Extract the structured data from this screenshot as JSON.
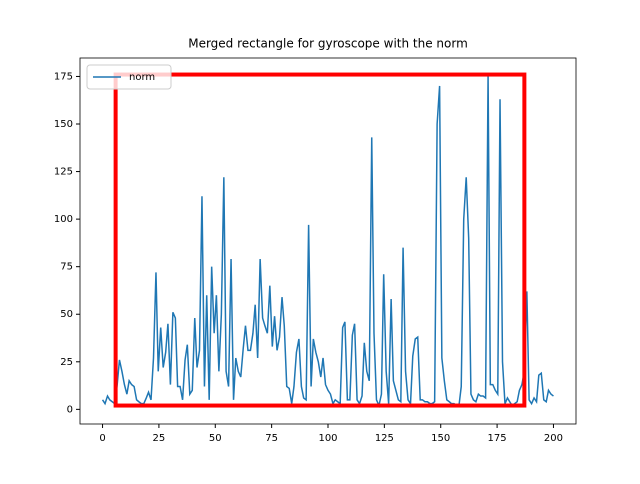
{
  "chart_data": {
    "type": "line",
    "title": "Merged rectangle for gyroscope with the norm",
    "x": [
      0,
      1.1,
      2.2,
      3.2,
      4.3,
      5.4,
      6.5,
      7.5,
      8.6,
      9.7,
      10.8,
      11.8,
      12.9,
      14,
      15.1,
      16.1,
      17.2,
      18.3,
      19.4,
      20.4,
      21.5,
      22.6,
      23.7,
      24.7,
      25.8,
      26.9,
      28,
      29,
      30.1,
      31.2,
      32.3,
      33.3,
      34.4,
      35.5,
      36.6,
      37.6,
      38.7,
      39.8,
      40.9,
      41.9,
      43,
      44.1,
      45.2,
      46.2,
      47.3,
      48.4,
      49.5,
      50.5,
      51.6,
      52.7,
      53.8,
      54.8,
      55.9,
      57,
      58.1,
      59.1,
      60.2,
      61.3,
      62.4,
      63.4,
      64.5,
      65.6,
      66.7,
      67.7,
      68.8,
      69.9,
      71,
      72,
      73.1,
      74.2,
      75.3,
      76.3,
      77.4,
      78.5,
      79.6,
      80.6,
      81.7,
      82.8,
      83.9,
      84.9,
      86,
      87.1,
      88.2,
      89.2,
      90.3,
      91.4,
      92.5,
      93.5,
      94.6,
      95.7,
      96.8,
      97.8,
      98.9,
      100,
      101.1,
      102.2,
      103.2,
      104.3,
      105.4,
      106.5,
      107.5,
      108.6,
      109.7,
      110.8,
      111.8,
      112.9,
      114,
      115.1,
      116.1,
      117.2,
      118.3,
      119.4,
      120.4,
      121.5,
      122.6,
      123.7,
      124.7,
      125.8,
      126.9,
      128,
      129,
      130.1,
      131.2,
      132.3,
      133.3,
      134.4,
      135.5,
      136.6,
      137.6,
      138.7,
      139.8,
      140.9,
      141.9,
      143,
      144.1,
      145.2,
      146.2,
      147.3,
      148.4,
      149.5,
      150.5,
      151.6,
      152.7,
      153.8,
      154.8,
      155.9,
      157,
      158.1,
      159.1,
      160.2,
      161.3,
      162.4,
      163.4,
      164.5,
      165.6,
      166.7,
      167.7,
      168.8,
      169.9,
      171,
      172,
      173.1,
      174.2,
      175.3,
      176.3,
      177.4,
      178.5,
      179.6,
      180.6,
      181.7,
      182.8,
      183.9,
      184.9,
      186,
      187.1,
      188.2,
      189.2,
      190.3,
      191.4,
      192.5,
      193.5,
      194.6,
      195.7,
      196.8,
      197.8,
      198.9,
      200
    ],
    "series": [
      {
        "name": "norm",
        "color": "#1f77b4",
        "values": [
          5,
          3,
          7,
          5,
          4,
          3,
          13,
          26,
          20,
          13,
          8,
          15,
          13,
          12,
          5,
          4,
          3,
          3,
          6,
          9,
          5,
          27,
          72,
          20,
          43,
          22,
          30,
          45,
          13,
          51,
          48,
          12,
          12,
          5,
          26,
          34,
          8,
          10,
          48,
          22,
          31,
          112,
          12,
          60,
          5,
          75,
          40,
          60,
          20,
          50,
          122,
          20,
          12,
          79,
          5,
          27,
          20,
          17,
          32,
          44,
          31,
          31,
          40,
          55,
          27,
          79,
          48,
          44,
          40,
          65,
          33,
          49,
          31,
          38,
          59,
          44,
          12,
          11,
          3,
          12,
          30,
          37,
          12,
          6,
          5,
          97,
          12,
          37,
          30,
          25,
          17,
          27,
          13,
          10,
          8,
          3,
          5,
          4,
          3,
          43,
          46,
          5,
          5,
          39,
          45,
          5,
          3,
          7,
          35,
          20,
          15,
          143,
          40,
          5,
          2,
          8,
          71,
          20,
          3,
          58,
          15,
          10,
          5,
          4,
          85,
          20,
          5,
          3,
          28,
          37,
          38,
          5,
          5,
          4,
          4,
          3,
          3,
          4,
          150,
          170,
          27,
          15,
          5,
          4,
          3,
          3,
          2,
          2,
          12,
          100,
          122,
          90,
          8,
          5,
          4,
          8,
          7,
          7,
          6,
          176,
          13,
          13,
          10,
          8,
          163,
          25,
          3,
          6,
          4,
          2,
          3,
          4,
          10,
          13,
          20,
          62,
          5,
          3,
          6,
          4,
          18,
          19,
          5,
          4,
          10,
          8,
          7
        ]
      }
    ],
    "rectangle": {
      "x": [
        5.8,
        187.1
      ],
      "y": [
        2,
        176
      ],
      "color": "#ff0000"
    },
    "xlim": [
      -10,
      210
    ],
    "ylim": [
      -7.7,
      184.7
    ],
    "xticks": [
      0,
      25,
      50,
      75,
      100,
      125,
      150,
      175,
      200
    ],
    "yticks": [
      0,
      25,
      50,
      75,
      100,
      125,
      150,
      175
    ],
    "grid": false,
    "legend": "upper left"
  }
}
